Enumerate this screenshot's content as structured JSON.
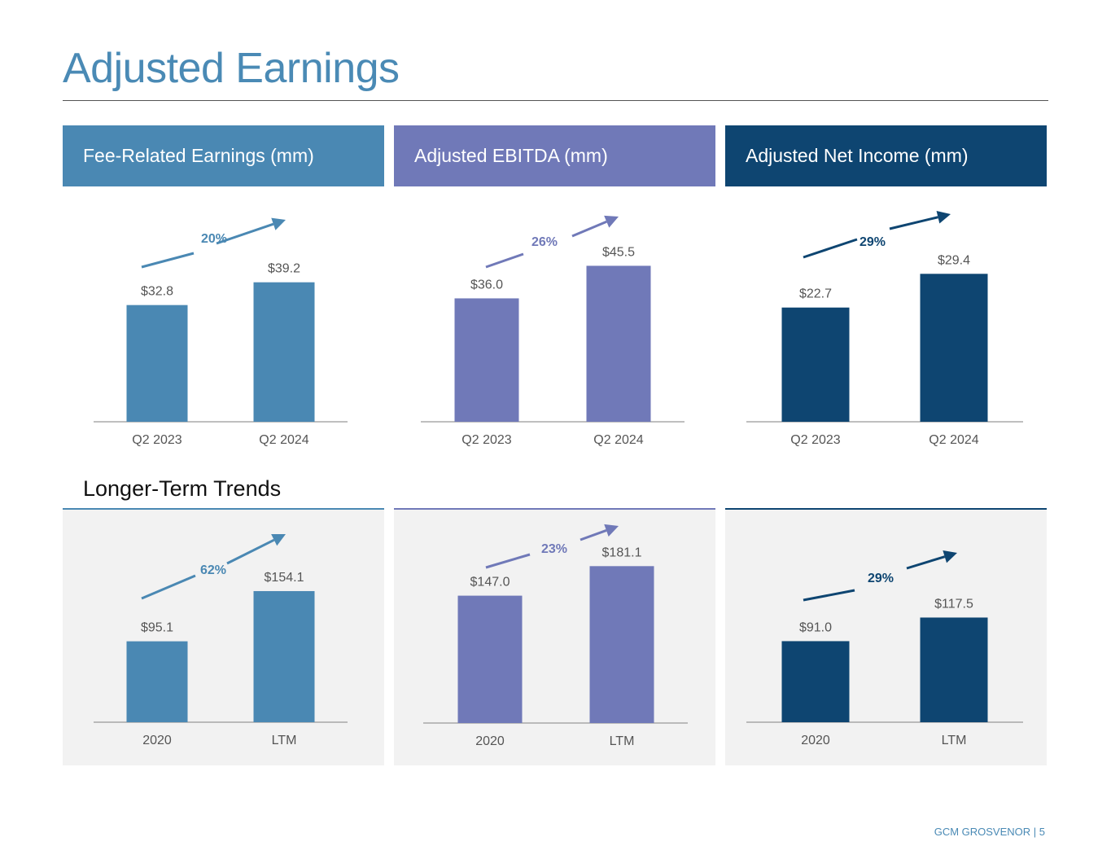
{
  "page": {
    "title": "Adjusted Earnings",
    "section_title": "Longer-Term Trends",
    "footer": "GCM GROSVENOR | 5"
  },
  "colors": {
    "title": "#4a8ab5",
    "fre": "#4a88b3",
    "ebitda": "#7079b8",
    "ani": "#0e4571",
    "panel_bg": "#f2f2f2",
    "label": "#555555"
  },
  "headers": [
    {
      "label": "Fee-Related Earnings (mm)",
      "color": "#4a88b3"
    },
    {
      "label": "Adjusted EBITDA (mm)",
      "color": "#7079b8"
    },
    {
      "label": "Adjusted Net Income (mm)",
      "color": "#0e4571"
    }
  ],
  "chart_data": [
    {
      "type": "bar",
      "title": "Fee-Related Earnings (mm)",
      "categories": [
        "Q2 2023",
        "Q2 2024"
      ],
      "values": [
        32.8,
        39.2
      ],
      "value_labels": [
        "$32.8",
        "$39.2"
      ],
      "growth": "20%",
      "color": "#4a88b3"
    },
    {
      "type": "bar",
      "title": "Adjusted EBITDA (mm)",
      "categories": [
        "Q2 2023",
        "Q2 2024"
      ],
      "values": [
        36.0,
        45.5
      ],
      "value_labels": [
        "$36.0",
        "$45.5"
      ],
      "growth": "26%",
      "color": "#7079b8"
    },
    {
      "type": "bar",
      "title": "Adjusted Net Income (mm)",
      "categories": [
        "Q2 2023",
        "Q2 2024"
      ],
      "values": [
        22.7,
        29.4
      ],
      "value_labels": [
        "$22.7",
        "$29.4"
      ],
      "growth": "29%",
      "color": "#0e4571"
    },
    {
      "type": "bar",
      "title": "Fee-Related Earnings (mm)",
      "categories": [
        "2020",
        "LTM"
      ],
      "values": [
        95.1,
        154.1
      ],
      "value_labels": [
        "$95.1",
        "$154.1"
      ],
      "growth": "62%",
      "color": "#4a88b3"
    },
    {
      "type": "bar",
      "title": "Adjusted EBITDA (mm)",
      "categories": [
        "2020",
        "LTM"
      ],
      "values": [
        147.0,
        181.1
      ],
      "value_labels": [
        "$147.0",
        "$181.1"
      ],
      "growth": "23%",
      "color": "#7079b8"
    },
    {
      "type": "bar",
      "title": "Adjusted Net Income (mm)",
      "categories": [
        "2020",
        "LTM"
      ],
      "values": [
        91.0,
        117.5
      ],
      "value_labels": [
        "$91.0",
        "$117.5"
      ],
      "growth": "29%",
      "color": "#0e4571"
    }
  ]
}
